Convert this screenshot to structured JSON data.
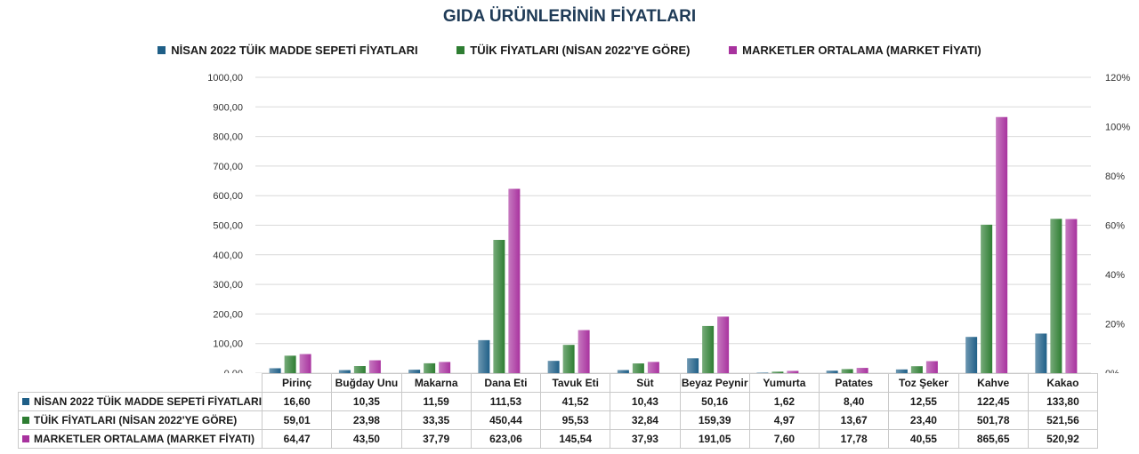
{
  "chart_data": {
    "type": "bar",
    "title": "GIDA ÜRÜNLERİNİN FİYATLARI",
    "categories": [
      "Pirinç",
      "Buğday Unu",
      "Makarna",
      "Dana Eti",
      "Tavuk Eti",
      "Süt",
      "Beyaz Peynir",
      "Yumurta",
      "Patates",
      "Toz Şeker",
      "Kahve",
      "Kakao"
    ],
    "series": [
      {
        "name": "NİSAN 2022 TÜİK MADDE SEPETİ FİYATLARI",
        "color": "#1f5f87",
        "values": [
          16.6,
          10.35,
          11.59,
          111.53,
          41.52,
          10.43,
          50.16,
          1.62,
          8.4,
          12.55,
          122.45,
          133.8
        ],
        "labels": [
          "16,60",
          "10,35",
          "11,59",
          "111,53",
          "41,52",
          "10,43",
          "50,16",
          "1,62",
          "8,40",
          "12,55",
          "122,45",
          "133,80"
        ]
      },
      {
        "name": "TÜİK FİYATLARI (NİSAN 2022'YE GÖRE)",
        "color": "#2e7d32",
        "values": [
          59.01,
          23.98,
          33.35,
          450.44,
          95.53,
          32.84,
          159.39,
          4.97,
          13.67,
          23.4,
          501.78,
          521.56
        ],
        "labels": [
          "59,01",
          "23,98",
          "33,35",
          "450,44",
          "95,53",
          "32,84",
          "159,39",
          "4,97",
          "13,67",
          "23,40",
          "501,78",
          "521,56"
        ]
      },
      {
        "name": "MARKETLER ORTALAMA (MARKET FİYATI)",
        "color": "#a8329e",
        "values": [
          64.47,
          43.5,
          37.79,
          623.06,
          145.54,
          37.93,
          191.05,
          7.6,
          17.78,
          40.55,
          865.65,
          520.92
        ],
        "labels": [
          "64,47",
          "43,50",
          "37,79",
          "623,06",
          "145,54",
          "37,93",
          "191,05",
          "7,60",
          "17,78",
          "40,55",
          "865,65",
          "520,92"
        ]
      }
    ],
    "ylim": [
      0,
      1000
    ],
    "y_ticks": [
      "0,00",
      "100,00",
      "200,00",
      "300,00",
      "400,00",
      "500,00",
      "600,00",
      "700,00",
      "800,00",
      "900,00",
      "1000,00"
    ],
    "y2lim": [
      0,
      120
    ],
    "y2_ticks": [
      "0%",
      "20%",
      "40%",
      "60%",
      "80%",
      "100%",
      "120%"
    ],
    "grid": true,
    "legend_position": "top",
    "data_table": true
  }
}
